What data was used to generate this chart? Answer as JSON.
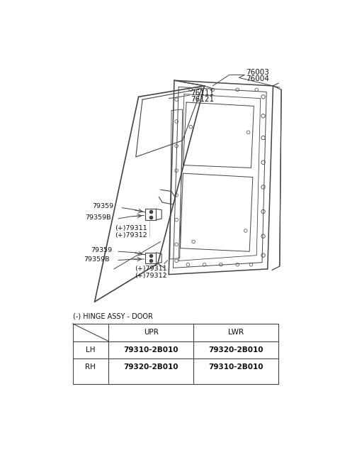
{
  "bg_color": "#ffffff",
  "fig_width": 4.8,
  "fig_height": 6.55,
  "dpi": 100,
  "line_color": "#444444",
  "text_color": "#111111",
  "label_fontsize": 6.8,
  "table_fontsize": 7.5,
  "table_title": "(-) HINGE ASSY - DOOR",
  "table": {
    "header": [
      "",
      "UPR",
      "LWR"
    ],
    "rows": [
      [
        "LH",
        "79310-2B010",
        "79320-2B010"
      ],
      [
        "RH",
        "79320-2B010",
        "79310-2B010"
      ]
    ]
  }
}
